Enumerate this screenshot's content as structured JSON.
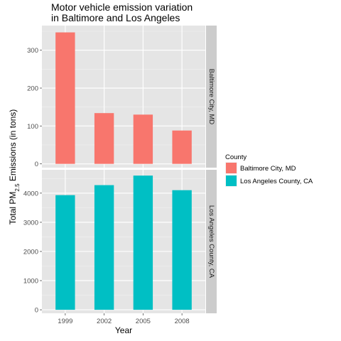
{
  "chart_data": {
    "type": "bar",
    "title": [
      "Motor vehicle emission variation",
      "in Baltimore and Los Angeles"
    ],
    "xlabel": "Year",
    "ylabel": {
      "prefix": "Total PM",
      "subscript": "2.5",
      "suffix": " Emissions (in tons)"
    },
    "categories": [
      "1999",
      "2002",
      "2005",
      "2008"
    ],
    "grid": true,
    "legend_placement": "right",
    "legend_title": "County",
    "panels": [
      {
        "strip_label": "Baltimore City, MD",
        "series": "Baltimore City, MD",
        "color": "#F8766D",
        "values": [
          347,
          134,
          130,
          88
        ],
        "ylim": [
          -10,
          365
        ],
        "yticks": [
          0,
          100,
          200,
          300
        ]
      },
      {
        "strip_label": "Los Angeles County, CA",
        "series": "Los Angeles County, CA",
        "color": "#00BFC4",
        "values": [
          3931,
          4274,
          4601,
          4101
        ],
        "ylim": [
          -120,
          4800
        ],
        "yticks": [
          0,
          1000,
          2000,
          3000,
          4000
        ]
      }
    ],
    "legend": [
      {
        "name": "Baltimore City, MD",
        "color": "#F8766D"
      },
      {
        "name": "Los Angeles County, CA",
        "color": "#00BFC4"
      }
    ]
  }
}
